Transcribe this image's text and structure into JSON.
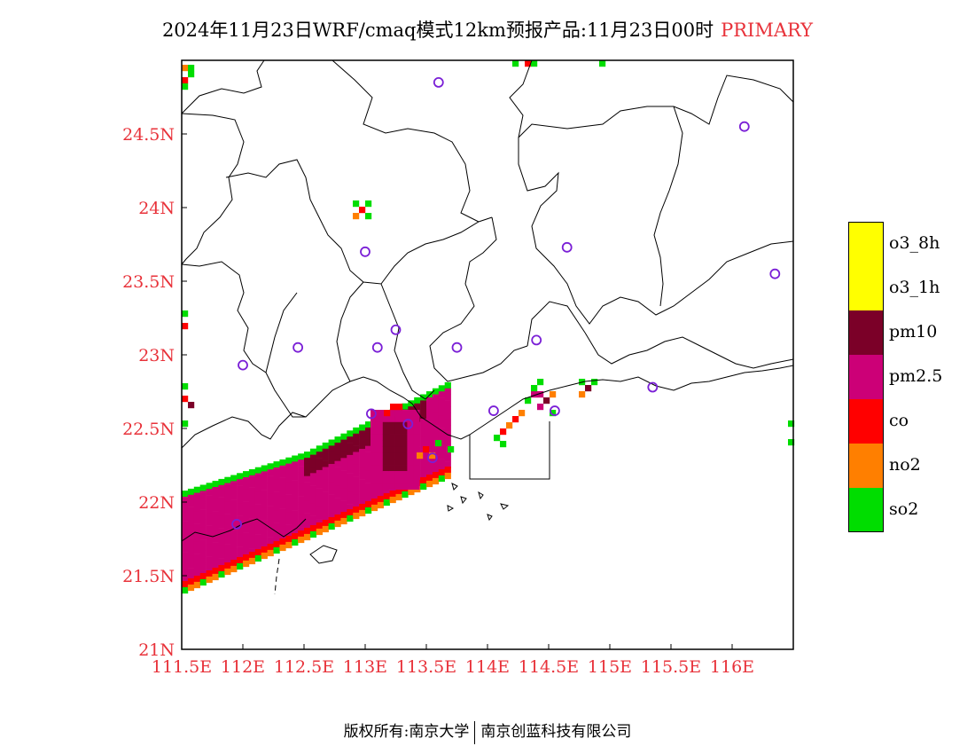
{
  "title": {
    "main": "2024年11月23日WRF/cmaq模式12km预报产品:11月23日00时",
    "variable": "PRIMARY"
  },
  "colors": {
    "accent": "#e8323a",
    "station": "#7a1fd6"
  },
  "axes": {
    "x_ticks": [
      "111.5E",
      "112E",
      "112.5E",
      "113E",
      "113.5E",
      "114E",
      "114.5E",
      "115E",
      "115.5E",
      "116E"
    ],
    "y_ticks": [
      "21N",
      "21.5N",
      "22N",
      "22.5N",
      "23N",
      "23.5N",
      "24N",
      "24.5N"
    ],
    "lon_range": [
      111.5,
      116.5
    ],
    "lat_range": [
      21.0,
      25.0
    ]
  },
  "legend": [
    {
      "label": "o3_8h",
      "color": "#ffff00"
    },
    {
      "label": "o3_1h",
      "color": "#ffff00"
    },
    {
      "label": "pm10",
      "color": "#7b0028"
    },
    {
      "label": "pm2.5",
      "color": "#cc0077"
    },
    {
      "label": "co",
      "color": "#ff0000"
    },
    {
      "label": "no2",
      "color": "#ff7f00"
    },
    {
      "label": "so2",
      "color": "#00dd00"
    }
  ],
  "stations": [
    [
      113.6,
      24.85
    ],
    [
      116.1,
      24.55
    ],
    [
      113.0,
      23.7
    ],
    [
      114.65,
      23.73
    ],
    [
      116.35,
      23.55
    ],
    [
      113.25,
      23.17
    ],
    [
      113.1,
      23.05
    ],
    [
      112.45,
      23.05
    ],
    [
      112.0,
      22.93
    ],
    [
      113.75,
      23.05
    ],
    [
      114.4,
      23.1
    ],
    [
      113.05,
      22.6
    ],
    [
      113.35,
      22.53
    ],
    [
      114.05,
      22.62
    ],
    [
      114.55,
      22.62
    ],
    [
      115.35,
      22.78
    ],
    [
      111.95,
      21.85
    ],
    [
      113.55,
      22.3
    ]
  ],
  "footer": {
    "left": "版权所有:南京大学",
    "right": "南京创蓝科技有限公司"
  }
}
